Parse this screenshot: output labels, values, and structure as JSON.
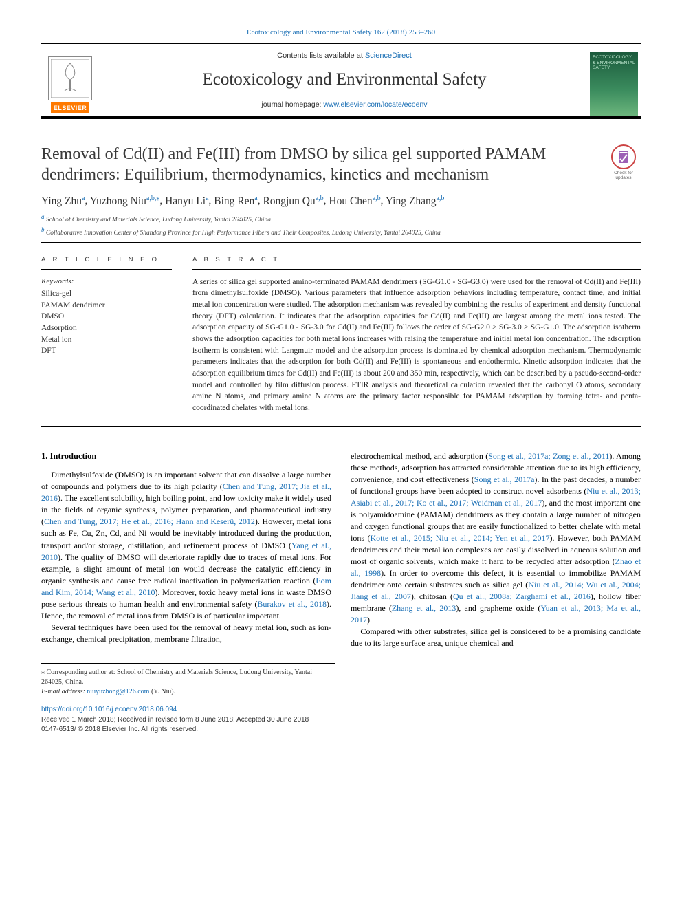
{
  "header": {
    "citation": "Ecotoxicology and Environmental Safety 162 (2018) 253–260",
    "contents_prefix": "Contents lists available at ",
    "contents_link": "ScienceDirect",
    "journal_name": "Ecotoxicology and Environmental Safety",
    "homepage_prefix": "journal homepage: ",
    "homepage_link": "www.elsevier.com/locate/ecoenv",
    "publisher_badge": "ELSEVIER",
    "cover_title": "ECOTOXICOLOGY & ENVIRONMENTAL SAFETY",
    "updates_caption": "Check for updates",
    "colors": {
      "link": "#1a6fb5",
      "elsevier_orange": "#ff7a00",
      "cover_green_top": "#1b5a3c",
      "cover_green_bottom": "#6bb57c",
      "rule": "#000000"
    }
  },
  "article": {
    "title": "Removal of Cd(II) and Fe(III) from DMSO by silica gel supported PAMAM dendrimers: Equilibrium, thermodynamics, kinetics and mechanism",
    "authors": [
      {
        "name": "Ying Zhu",
        "aff": "a"
      },
      {
        "name": "Yuzhong Niu",
        "aff": "a,b,",
        "corr": true
      },
      {
        "name": "Hanyu Li",
        "aff": "a"
      },
      {
        "name": "Bing Ren",
        "aff": "a"
      },
      {
        "name": "Rongjun Qu",
        "aff": "a,b"
      },
      {
        "name": "Hou Chen",
        "aff": "a,b"
      },
      {
        "name": "Ying Zhang",
        "aff": "a,b"
      }
    ],
    "affiliations": [
      {
        "tag": "a",
        "text": "School of Chemistry and Materials Science, Ludong University, Yantai 264025, China"
      },
      {
        "tag": "b",
        "text": "Collaborative Innovation Center of Shandong Province for High Performance Fibers and Their Composites, Ludong University, Yantai 264025, China"
      }
    ]
  },
  "info": {
    "head": "A R T I C L E  I N F O",
    "kw_label": "Keywords:",
    "keywords": [
      "Silica-gel",
      "PAMAM dendrimer",
      "DMSO",
      "Adsorption",
      "Metal ion",
      "DFT"
    ]
  },
  "abstract": {
    "head": "A B S T R A C T",
    "text": "A series of silica gel supported amino-terminated PAMAM dendrimers (SG-G1.0 - SG-G3.0) were used for the removal of Cd(II) and Fe(III) from dimethylsulfoxide (DMSO). Various parameters that influence adsorption behaviors including temperature, contact time, and initial metal ion concentration were studied. The adsorption mechanism was revealed by combining the results of experiment and density functional theory (DFT) calculation. It indicates that the adsorption capacities for Cd(II) and Fe(III) are largest among the metal ions tested. The adsorption capacity of SG-G1.0 - SG-3.0 for Cd(II) and Fe(III) follows the order of SG-G2.0 > SG-3.0 > SG-G1.0. The adsorption isotherm shows the adsorption capacities for both metal ions increases with raising the temperature and initial metal ion concentration. The adsorption isotherm is consistent with Langmuir model and the adsorption process is dominated by chemical adsorption mechanism. Thermodynamic parameters indicates that the adsorption for both Cd(II) and Fe(III) is spontaneous and endothermic. Kinetic adsorption indicates that the adsorption equilibrium times for Cd(II) and Fe(III) is about 200 and 350 min, respectively, which can be described by a pseudo-second-order model and controlled by film diffusion process. FTIR analysis and theoretical calculation revealed that the carbonyl O atoms, secondary amine N atoms, and primary amine N atoms are the primary factor responsible for PAMAM adsorption by forming tetra- and penta-coordinated chelates with metal ions."
  },
  "body": {
    "section_num": "1.",
    "section_title": "Introduction",
    "p1_a": "Dimethylsulfoxide (DMSO) is an important solvent that can dissolve a large number of compounds and polymers due to its high polarity (",
    "p1_l1": "Chen and Tung, 2017; Jia et al., 2016",
    "p1_b": "). The excellent solubility, high boiling point, and low toxicity make it widely used in the fields of organic synthesis, polymer preparation, and pharmaceutical industry (",
    "p1_l2": "Chen and Tung, 2017; He et al., 2016; Hann and Keserü, 2012",
    "p1_c": "). However, metal ions such as Fe, Cu, Zn, Cd, and Ni would be inevitably introduced during the production, transport and/or storage, distillation, and refinement process of DMSO (",
    "p1_l3": "Yang et al., 2010",
    "p1_d": "). The quality of DMSO will deteriorate rapidly due to traces of metal ions. For example, a slight amount of metal ion would decrease the catalytic efficiency in organic synthesis and cause free radical inactivation in polymerization reaction (",
    "p1_l4": "Eom and Kim, 2014; Wang et al., 2010",
    "p1_e": "). Moreover, toxic heavy metal ions in waste DMSO pose serious threats to human health and environmental safety (",
    "p1_l5": "Burakov et al., 2018",
    "p1_f": "). Hence, the removal of metal ions from DMSO is of particular important.",
    "p2": "Several techniques have been used for the removal of heavy metal ion, such as ion-exchange, chemical precipitation, membrane filtration,",
    "p3_a": "electrochemical method, and adsorption (",
    "p3_l1": "Song et al., 2017a; Zong et al., 2011",
    "p3_b": "). Among these methods, adsorption has attracted considerable attention due to its high efficiency, convenience, and cost effectiveness (",
    "p3_l2": "Song et al., 2017a",
    "p3_c": "). In the past decades, a number of functional groups have been adopted to construct novel adsorbents (",
    "p3_l3": "Niu et al., 2013; Asiabi et al., 2017; Ko et al., 2017; Weidman et al., 2017",
    "p3_d": "), and the most important one is polyamidoamine (PAMAM) dendrimers as they contain a large number of nitrogen and oxygen functional groups that are easily functionalized to better chelate with metal ions (",
    "p3_l4": "Kotte et al., 2015; Niu et al., 2014; Yen et al., 2017",
    "p3_e": "). However, both PAMAM dendrimers and their metal ion complexes are easily dissolved in aqueous solution and most of organic solvents, which make it hard to be recycled after adsorption (",
    "p3_l5": "Zhao et al., 1998",
    "p3_f": "). In order to overcome this defect, it is essential to immobilize PAMAM dendrimer onto certain substrates such as silica gel (",
    "p3_l6": "Niu et al., 2014; Wu et al., 2004; Jiang et al., 2007",
    "p3_g": "), chitosan (",
    "p3_l7": "Qu et al., 2008a; Zarghami et al., 2016",
    "p3_h": "), hollow fiber membrane (",
    "p3_l8": "Zhang et al., 2013",
    "p3_i": "), and grapheme oxide (",
    "p3_l9": "Yuan et al., 2013; Ma et al., 2017",
    "p3_j": ").",
    "p4": "Compared with other substrates, silica gel is considered to be a promising candidate due to its large surface area, unique chemical and"
  },
  "footnotes": {
    "corr_marker": "⁎",
    "corr_text": "Corresponding author at: School of Chemistry and Materials Science, Ludong University, Yantai 264025, China.",
    "email_label": "E-mail address:",
    "email": "niuyuzhong@126.com",
    "email_suffix": "(Y. Niu)."
  },
  "footer": {
    "doi": "https://doi.org/10.1016/j.ecoenv.2018.06.094",
    "history": "Received 1 March 2018; Received in revised form 8 June 2018; Accepted 30 June 2018",
    "copyright": "0147-6513/ © 2018 Elsevier Inc. All rights reserved."
  }
}
